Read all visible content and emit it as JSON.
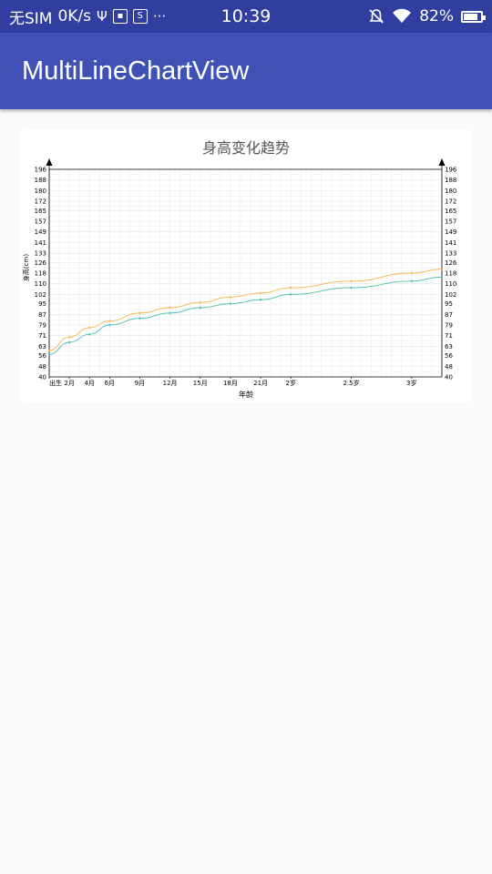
{
  "status_bar": {
    "carrier": "无SIM",
    "net_speed": "0K/s",
    "icons_left": [
      "usb-icon",
      "sim-icon",
      "s-app-icon",
      "more-dots-icon"
    ],
    "time": "10:39",
    "icons_right": [
      "mute-bell-icon",
      "wifi-icon"
    ],
    "battery": "82%",
    "battery_level": 0.82
  },
  "app_bar": {
    "title": "MultiLineChartView"
  },
  "chart_data": {
    "type": "line",
    "title": "身高变化趋势",
    "xlabel": "年龄",
    "ylabel": "身高(cm)",
    "x_ticks": [
      {
        "label": "出生",
        "x": 0
      },
      {
        "label": "2月",
        "x": 2
      },
      {
        "label": "4月",
        "x": 4
      },
      {
        "label": "6月",
        "x": 6
      },
      {
        "label": "9月",
        "x": 9
      },
      {
        "label": "12月",
        "x": 12
      },
      {
        "label": "15月",
        "x": 15
      },
      {
        "label": "18月",
        "x": 18
      },
      {
        "label": "21月",
        "x": 21
      },
      {
        "label": "2岁",
        "x": 24
      },
      {
        "label": "2.5岁",
        "x": 30
      },
      {
        "label": "3岁",
        "x": 36
      }
    ],
    "xlim": [
      0,
      39
    ],
    "y_ticks": [
      40,
      48,
      56,
      63,
      71,
      79,
      87,
      95,
      102,
      110,
      118,
      126,
      133,
      141,
      149,
      157,
      165,
      172,
      180,
      188,
      196
    ],
    "ylim": [
      40,
      196
    ],
    "grid": true,
    "series": [
      {
        "color": "#f5b74a",
        "points": [
          [
            0,
            60
          ],
          [
            2,
            70
          ],
          [
            4,
            77
          ],
          [
            6,
            82
          ],
          [
            9,
            88
          ],
          [
            12,
            92
          ],
          [
            15,
            96
          ],
          [
            18,
            100
          ],
          [
            21,
            103
          ],
          [
            24,
            107
          ],
          [
            30,
            112
          ],
          [
            36,
            118
          ],
          [
            39,
            121
          ]
        ]
      },
      {
        "color": "#4fc0b0",
        "points": [
          [
            0,
            57
          ],
          [
            2,
            66
          ],
          [
            4,
            72
          ],
          [
            6,
            79
          ],
          [
            9,
            84
          ],
          [
            12,
            88
          ],
          [
            15,
            92
          ],
          [
            18,
            95
          ],
          [
            21,
            98
          ],
          [
            24,
            102
          ],
          [
            30,
            107
          ],
          [
            36,
            112
          ],
          [
            39,
            115
          ]
        ]
      }
    ]
  }
}
